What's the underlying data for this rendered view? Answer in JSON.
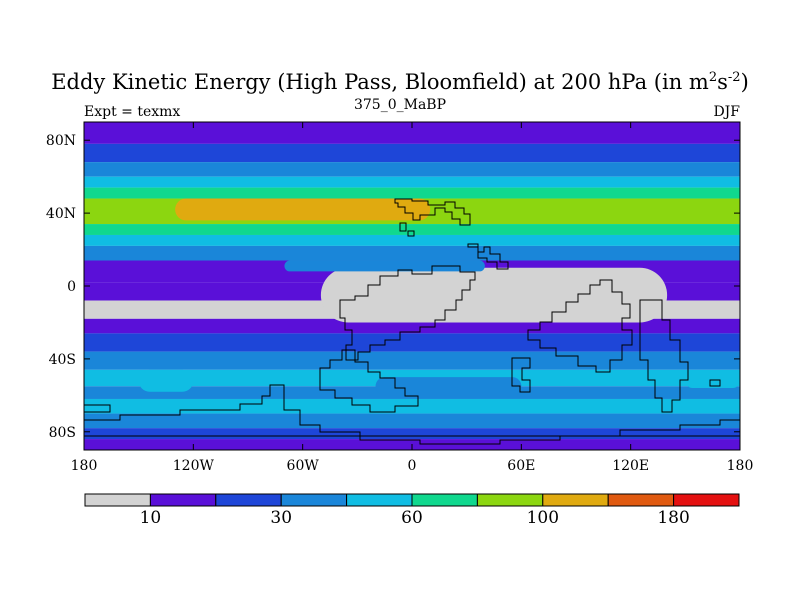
{
  "chart_data": {
    "type": "heatmap",
    "title": "Eddy Kinetic Energy (High Pass, Bloomfield) at 200 hPa (in m²s⁻²)",
    "title_parts": {
      "main": "Eddy Kinetic Energy (High Pass, Bloomfield) at 200 hPa (in m",
      "sup1": "2",
      "mid": "s",
      "sup2": "-2",
      "end": ")"
    },
    "subtitle": "375_0_MaBP",
    "left_label": "Expt = texmx",
    "right_label": "DJF",
    "projection": "cylindrical-equidistant",
    "lon_range": [
      -180,
      180
    ],
    "lat_range": [
      -90,
      90
    ],
    "x_ticks": [
      {
        "value": -180,
        "label": "180"
      },
      {
        "value": -120,
        "label": "120W"
      },
      {
        "value": -60,
        "label": "60W"
      },
      {
        "value": 0,
        "label": "0"
      },
      {
        "value": 60,
        "label": "60E"
      },
      {
        "value": 120,
        "label": "120E"
      },
      {
        "value": 180,
        "label": "180"
      }
    ],
    "y_ticks": [
      {
        "value": 80,
        "label": "80N"
      },
      {
        "value": 40,
        "label": "40N"
      },
      {
        "value": 0,
        "label": "0"
      },
      {
        "value": -40,
        "label": "40S"
      },
      {
        "value": -80,
        "label": "80S"
      }
    ],
    "colorbar": {
      "colors": [
        "#d3d3d3",
        "#5a10d8",
        "#1e46d8",
        "#1a86d9",
        "#10bde3",
        "#10d88e",
        "#8cd610",
        "#e0aa10",
        "#e05a10",
        "#e41010"
      ],
      "label_ticks": [
        {
          "boundary_index": 1,
          "label": "10"
        },
        {
          "boundary_index": 3,
          "label": "30"
        },
        {
          "boundary_index": 5,
          "label": "60"
        },
        {
          "boundary_index": 7,
          "label": "100"
        },
        {
          "boundary_index": 9,
          "label": "180"
        }
      ]
    },
    "zonal_bands": [
      {
        "lat_top": 90,
        "lat_bottom": 78,
        "level": 1
      },
      {
        "lat_top": 78,
        "lat_bottom": 68,
        "level": 2
      },
      {
        "lat_top": 68,
        "lat_bottom": 60,
        "level": 3
      },
      {
        "lat_top": 60,
        "lat_bottom": 54,
        "level": 4
      },
      {
        "lat_top": 54,
        "lat_bottom": 48,
        "level": 5
      },
      {
        "lat_top": 48,
        "lat_bottom": 34,
        "level": 6
      },
      {
        "lat_top": 34,
        "lat_bottom": 28,
        "level": 5
      },
      {
        "lat_top": 28,
        "lat_bottom": 22,
        "level": 4
      },
      {
        "lat_top": 22,
        "lat_bottom": 14,
        "level": 3
      },
      {
        "lat_top": 14,
        "lat_bottom": 2,
        "level": 1
      },
      {
        "lat_top": 2,
        "lat_bottom": -8,
        "level": 1
      },
      {
        "lat_top": -8,
        "lat_bottom": -18,
        "level": 0
      },
      {
        "lat_top": -18,
        "lat_bottom": -26,
        "level": 1
      },
      {
        "lat_top": -26,
        "lat_bottom": -36,
        "level": 2
      },
      {
        "lat_top": -36,
        "lat_bottom": -46,
        "level": 3
      },
      {
        "lat_top": -46,
        "lat_bottom": -55,
        "level": 4
      },
      {
        "lat_top": -55,
        "lat_bottom": -62,
        "level": 3
      },
      {
        "lat_top": -62,
        "lat_bottom": -70,
        "level": 4
      },
      {
        "lat_top": -70,
        "lat_bottom": -78,
        "level": 3
      },
      {
        "lat_top": -78,
        "lat_bottom": -84,
        "level": 2
      },
      {
        "lat_top": -84,
        "lat_bottom": -90,
        "level": 1
      }
    ],
    "regions": [
      {
        "level": 7,
        "lon_min": -130,
        "lon_max": 10,
        "lat_min": 36,
        "lat_max": 48
      },
      {
        "level": 0,
        "lon_min": -50,
        "lon_max": 140,
        "lat_min": -20,
        "lat_max": 10
      },
      {
        "level": 3,
        "lon_min": -70,
        "lon_max": 40,
        "lat_min": 8,
        "lat_max": 14
      },
      {
        "level": 4,
        "lon_min": -150,
        "lon_max": -120,
        "lat_min": -58,
        "lat_max": -46
      },
      {
        "level": 3,
        "lon_min": -20,
        "lon_max": 60,
        "lat_min": -60,
        "lat_max": -50
      },
      {
        "level": 4,
        "lon_min": 150,
        "lon_max": 180,
        "lat_min": -56,
        "lat_max": -48
      }
    ]
  }
}
